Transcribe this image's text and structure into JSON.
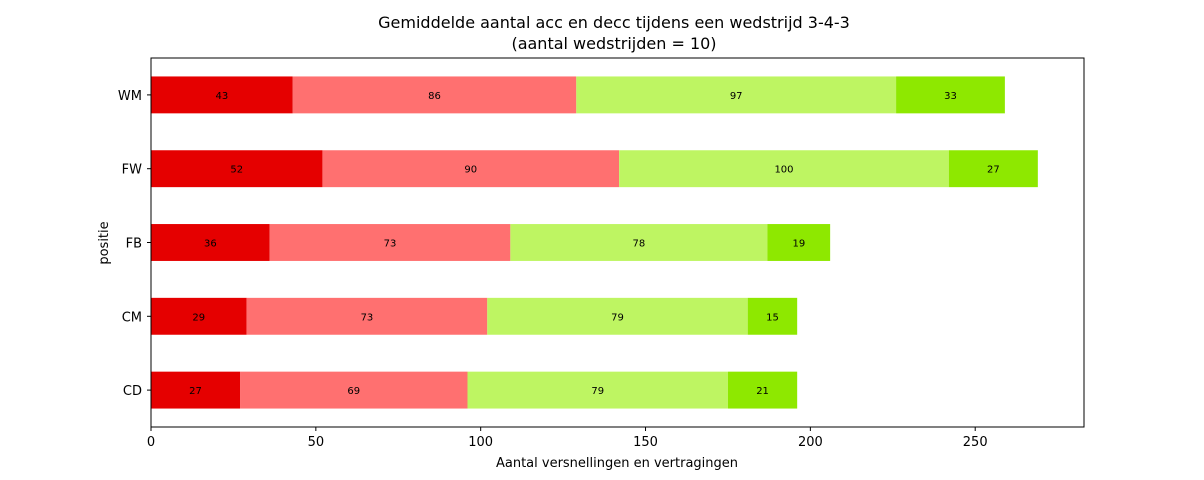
{
  "chart_data": {
    "type": "bar",
    "orientation": "horizontal",
    "stacked": true,
    "title": "Gemiddelde aantal acc en decc tijdens een wedstrijd 3-4-3",
    "subtitle": "(aantal wedstrijden = 10)",
    "xlabel": "Aantal versnellingen en vertragingen",
    "ylabel": "positie",
    "xlim": [
      0,
      283
    ],
    "xticks": [
      0,
      50,
      100,
      150,
      200,
      250
    ],
    "categories": [
      "CD",
      "CM",
      "FB",
      "FW",
      "WM"
    ],
    "series": [
      {
        "name": "series-1",
        "color": "#e50000",
        "values": [
          27,
          29,
          36,
          52,
          43
        ]
      },
      {
        "name": "series-2",
        "color": "#ff7070",
        "values": [
          69,
          73,
          73,
          90,
          86
        ]
      },
      {
        "name": "series-3",
        "color": "#bef562",
        "values": [
          79,
          79,
          78,
          100,
          97
        ]
      },
      {
        "name": "series-4",
        "color": "#8ee800",
        "values": [
          21,
          15,
          19,
          27,
          33
        ]
      }
    ]
  }
}
